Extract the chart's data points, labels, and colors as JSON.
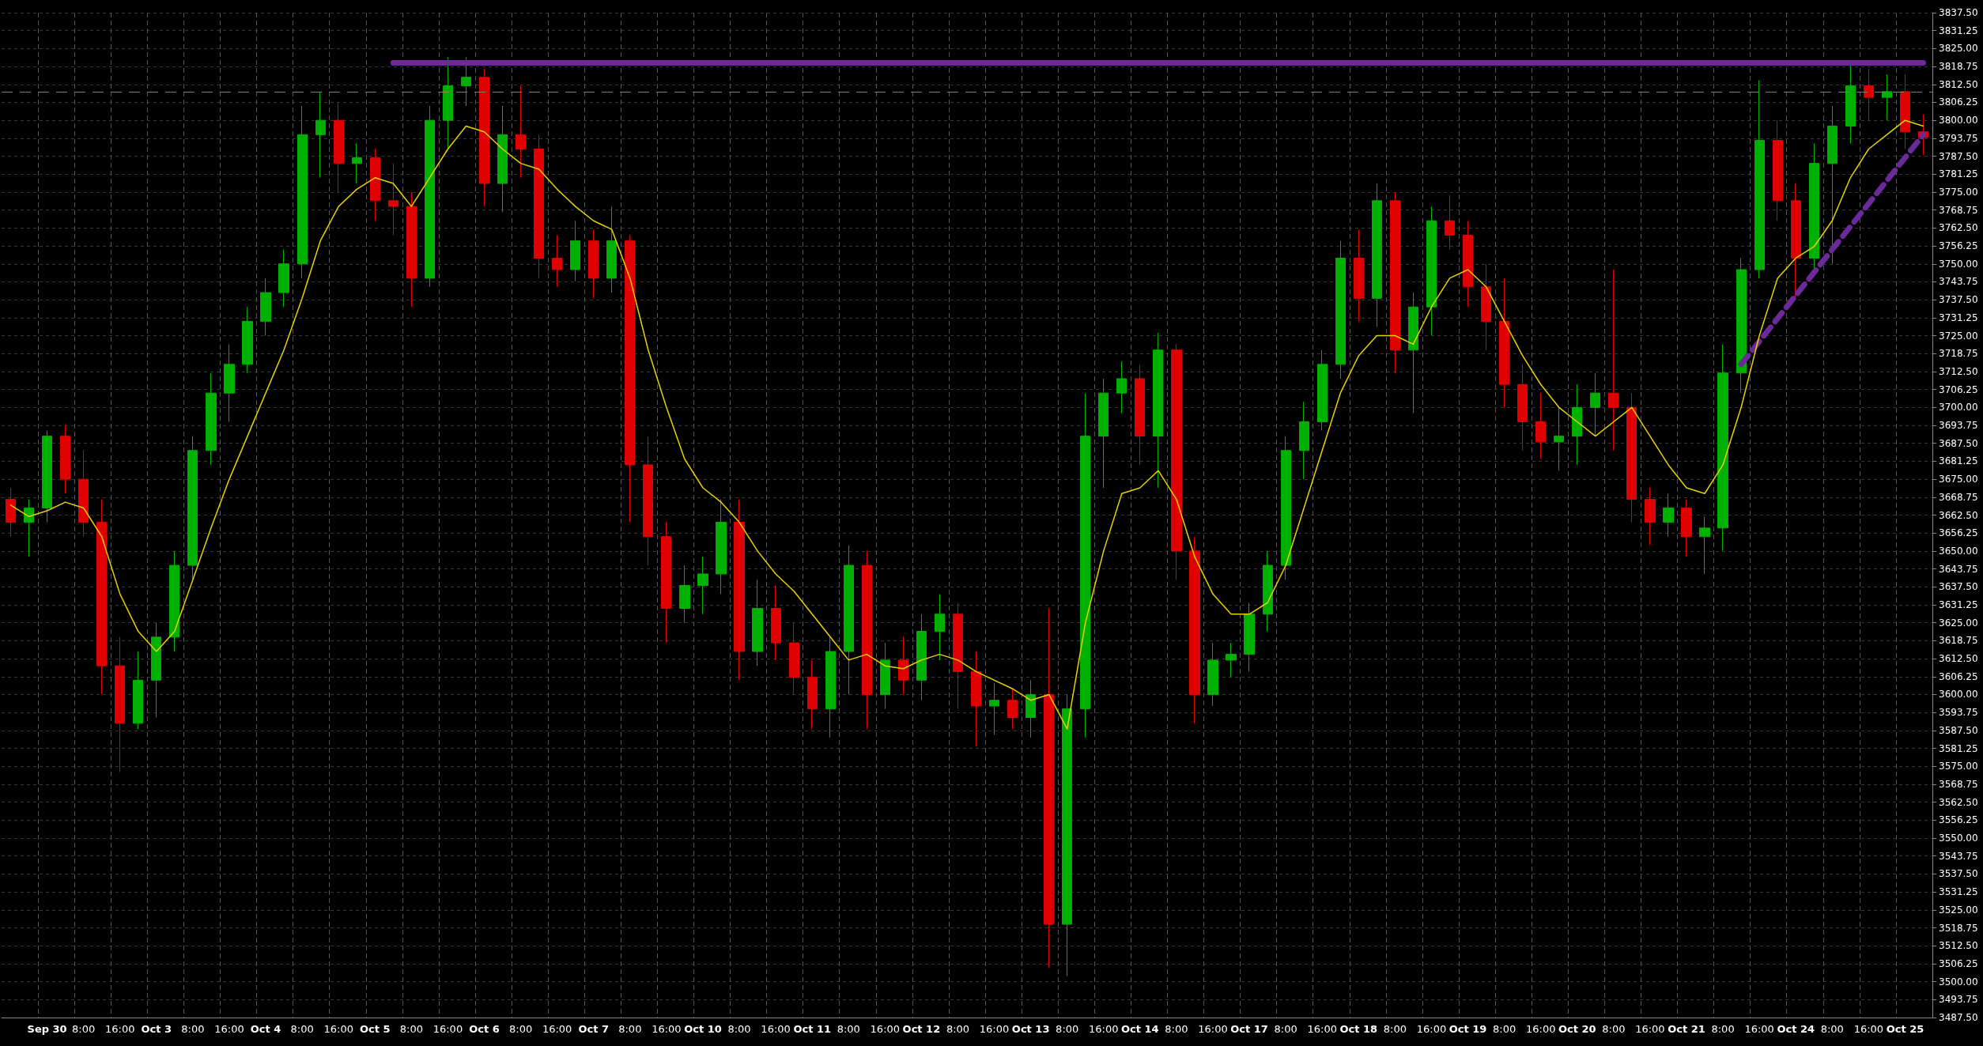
{
  "chart_data": {
    "type": "candlestick",
    "categories": [
      null,
      null,
      "Sep 30",
      null,
      "8:00",
      null,
      "16:00",
      null,
      "Oct 3",
      null,
      "8:00",
      null,
      "16:00",
      null,
      "Oct 4",
      null,
      "8:00",
      null,
      "16:00",
      null,
      "Oct 5",
      null,
      "8:00",
      null,
      "16:00",
      null,
      "Oct 6",
      null,
      "8:00",
      null,
      "16:00",
      null,
      "Oct 7",
      null,
      "8:00",
      null,
      "16:00",
      null,
      "Oct 10",
      null,
      "8:00",
      null,
      "16:00",
      null,
      "Oct 11",
      null,
      "8:00",
      null,
      "16:00",
      null,
      "Oct 12",
      null,
      "8:00",
      null,
      "16:00",
      null,
      "Oct 13",
      null,
      "8:00",
      null,
      "16:00",
      null,
      "Oct 14",
      null,
      "8:00",
      null,
      "16:00",
      null,
      "Oct 17",
      null,
      "8:00",
      null,
      "16:00",
      null,
      "Oct 18",
      null,
      "8:00",
      null,
      "16:00",
      null,
      "Oct 19",
      null,
      "8:00",
      null,
      "16:00",
      null,
      "Oct 20",
      null,
      "8:00",
      null,
      "16:00",
      null,
      "Oct 21",
      null,
      "8:00",
      null,
      "16:00",
      null,
      "Oct 24",
      null,
      "8:00",
      null,
      "16:00",
      null,
      "Oct 25",
      null
    ],
    "ohlc": [
      [
        3668,
        3672,
        3655,
        3660
      ],
      [
        3660,
        3668,
        3648,
        3665
      ],
      [
        3665,
        3692,
        3660,
        3690
      ],
      [
        3690,
        3694,
        3670,
        3675
      ],
      [
        3675,
        3685,
        3655,
        3660
      ],
      [
        3660,
        3668,
        3600,
        3610
      ],
      [
        3610,
        3620,
        3573,
        3590
      ],
      [
        3590,
        3615,
        3588,
        3605
      ],
      [
        3605,
        3625,
        3592,
        3620
      ],
      [
        3620,
        3650,
        3615,
        3645
      ],
      [
        3645,
        3690,
        3640,
        3685
      ],
      [
        3685,
        3712,
        3680,
        3705
      ],
      [
        3705,
        3722,
        3695,
        3715
      ],
      [
        3715,
        3735,
        3712,
        3730
      ],
      [
        3730,
        3745,
        3725,
        3740
      ],
      [
        3740,
        3755,
        3735,
        3750
      ],
      [
        3750,
        3805,
        3745,
        3795
      ],
      [
        3795,
        3810,
        3780,
        3800
      ],
      [
        3800,
        3806,
        3775,
        3785
      ],
      [
        3785,
        3792,
        3778,
        3787
      ],
      [
        3787,
        3790,
        3765,
        3772
      ],
      [
        3772,
        3785,
        3760,
        3770
      ],
      [
        3770,
        3775,
        3735,
        3745
      ],
      [
        3745,
        3805,
        3742,
        3800
      ],
      [
        3800,
        3822,
        3790,
        3812
      ],
      [
        3812,
        3822,
        3805,
        3815
      ],
      [
        3815,
        3818,
        3770,
        3778
      ],
      [
        3778,
        3805,
        3768,
        3795
      ],
      [
        3795,
        3812,
        3780,
        3790
      ],
      [
        3790,
        3795,
        3745,
        3752
      ],
      [
        3752,
        3760,
        3742,
        3748
      ],
      [
        3748,
        3765,
        3744,
        3758
      ],
      [
        3758,
        3762,
        3738,
        3745
      ],
      [
        3745,
        3770,
        3740,
        3758
      ],
      [
        3758,
        3760,
        3660,
        3680
      ],
      [
        3680,
        3690,
        3645,
        3655
      ],
      [
        3655,
        3660,
        3618,
        3630
      ],
      [
        3630,
        3645,
        3625,
        3638
      ],
      [
        3638,
        3648,
        3628,
        3642
      ],
      [
        3642,
        3668,
        3635,
        3660
      ],
      [
        3660,
        3668,
        3605,
        3615
      ],
      [
        3615,
        3640,
        3610,
        3630
      ],
      [
        3630,
        3638,
        3612,
        3618
      ],
      [
        3618,
        3625,
        3600,
        3606
      ],
      [
        3606,
        3612,
        3588,
        3595
      ],
      [
        3595,
        3620,
        3585,
        3615
      ],
      [
        3615,
        3652,
        3600,
        3645
      ],
      [
        3645,
        3650,
        3588,
        3600
      ],
      [
        3600,
        3618,
        3595,
        3612
      ],
      [
        3612,
        3620,
        3600,
        3605
      ],
      [
        3605,
        3628,
        3598,
        3622
      ],
      [
        3622,
        3635,
        3612,
        3628
      ],
      [
        3628,
        3632,
        3595,
        3608
      ],
      [
        3608,
        3615,
        3582,
        3596
      ],
      [
        3596,
        3604,
        3586,
        3598
      ],
      [
        3598,
        3602,
        3588,
        3592
      ],
      [
        3592,
        3605,
        3585,
        3600
      ],
      [
        3600,
        3630,
        3505,
        3520
      ],
      [
        3520,
        3600,
        3502,
        3595
      ],
      [
        3595,
        3705,
        3585,
        3690
      ],
      [
        3690,
        3710,
        3672,
        3705
      ],
      [
        3705,
        3716,
        3698,
        3710
      ],
      [
        3710,
        3715,
        3680,
        3690
      ],
      [
        3690,
        3726,
        3672,
        3720
      ],
      [
        3720,
        3722,
        3640,
        3650
      ],
      [
        3650,
        3655,
        3590,
        3600
      ],
      [
        3600,
        3618,
        3596,
        3612
      ],
      [
        3612,
        3618,
        3606,
        3614
      ],
      [
        3614,
        3632,
        3608,
        3628
      ],
      [
        3628,
        3650,
        3622,
        3645
      ],
      [
        3645,
        3690,
        3640,
        3685
      ],
      [
        3685,
        3702,
        3675,
        3695
      ],
      [
        3695,
        3720,
        3692,
        3715
      ],
      [
        3715,
        3758,
        3710,
        3752
      ],
      [
        3752,
        3762,
        3730,
        3738
      ],
      [
        3738,
        3778,
        3728,
        3772
      ],
      [
        3772,
        3775,
        3712,
        3720
      ],
      [
        3720,
        3740,
        3698,
        3735
      ],
      [
        3735,
        3770,
        3725,
        3765
      ],
      [
        3765,
        3774,
        3755,
        3760
      ],
      [
        3760,
        3765,
        3735,
        3742
      ],
      [
        3742,
        3750,
        3720,
        3730
      ],
      [
        3730,
        3745,
        3700,
        3708
      ],
      [
        3708,
        3715,
        3685,
        3695
      ],
      [
        3695,
        3705,
        3682,
        3688
      ],
      [
        3688,
        3700,
        3678,
        3690
      ],
      [
        3690,
        3708,
        3680,
        3700
      ],
      [
        3700,
        3712,
        3690,
        3705
      ],
      [
        3705,
        3748,
        3685,
        3700
      ],
      [
        3700,
        3705,
        3660,
        3668
      ],
      [
        3668,
        3672,
        3652,
        3660
      ],
      [
        3660,
        3670,
        3655,
        3665
      ],
      [
        3665,
        3668,
        3648,
        3655
      ],
      [
        3655,
        3662,
        3642,
        3658
      ],
      [
        3658,
        3722,
        3650,
        3712
      ],
      [
        3712,
        3752,
        3705,
        3748
      ],
      [
        3748,
        3814,
        3745,
        3793
      ],
      [
        3793,
        3800,
        3765,
        3772
      ],
      [
        3772,
        3778,
        3738,
        3752
      ],
      [
        3752,
        3792,
        3748,
        3785
      ],
      [
        3785,
        3805,
        3750,
        3798
      ],
      [
        3798,
        3820,
        3792,
        3812
      ],
      [
        3812,
        3818,
        3800,
        3808
      ],
      [
        3808,
        3816,
        3800,
        3810
      ],
      [
        3810,
        3816,
        3790,
        3796
      ],
      [
        3796,
        3802,
        3788,
        3794
      ]
    ],
    "series": [
      {
        "type": "line",
        "color": "#e6d200",
        "values": [
          3666,
          3662,
          3664,
          3667,
          3665,
          3655,
          3635,
          3622,
          3615,
          3622,
          3640,
          3658,
          3675,
          3690,
          3705,
          3720,
          3738,
          3758,
          3770,
          3776,
          3780,
          3778,
          3770,
          3780,
          3790,
          3798,
          3796,
          3790,
          3785,
          3783,
          3776,
          3770,
          3765,
          3762,
          3745,
          3720,
          3700,
          3682,
          3672,
          3667,
          3660,
          3650,
          3642,
          3636,
          3628,
          3620,
          3612,
          3614,
          3610,
          3609,
          3612,
          3614,
          3612,
          3608,
          3605,
          3602,
          3598,
          3600,
          3588,
          3625,
          3650,
          3670,
          3672,
          3678,
          3668,
          3648,
          3635,
          3628,
          3628,
          3632,
          3645,
          3665,
          3685,
          3705,
          3718,
          3725,
          3725,
          3722,
          3735,
          3745,
          3748,
          3742,
          3730,
          3718,
          3708,
          3700,
          3695,
          3690,
          3695,
          3700,
          3690,
          3680,
          3672,
          3670,
          3680,
          3700,
          3725,
          3745,
          3752,
          3756,
          3765,
          3780,
          3790,
          3795,
          3800,
          3798
        ]
      },
      {
        "type": "line",
        "color": "#6a2a9a",
        "line_style": "solid",
        "values": [
          null,
          null,
          null,
          null,
          null,
          null,
          null,
          null,
          null,
          null,
          null,
          null,
          null,
          null,
          null,
          null,
          null,
          null,
          null,
          null,
          null,
          3820,
          3820,
          3820,
          3820,
          3820,
          3820,
          3820,
          3820,
          3820,
          3820,
          3820,
          3820,
          3820,
          3820,
          3820,
          3820,
          3820,
          3820,
          3820,
          3820,
          3820,
          3820,
          3820,
          3820,
          3820,
          3820,
          3820,
          3820,
          3820,
          3820,
          3820,
          3820,
          3820,
          3820,
          3820,
          3820,
          3820,
          3820,
          3820,
          3820,
          3820,
          3820,
          3820,
          3820,
          3820,
          3820,
          3820,
          3820,
          3820,
          3820,
          3820,
          3820,
          3820,
          3820,
          3820,
          3820,
          3820,
          3820,
          3820,
          3820,
          3820,
          3820,
          3820,
          3820,
          3820,
          3820,
          3820,
          3820,
          3820,
          3820,
          3820,
          3820,
          3820,
          3820,
          3820,
          3820,
          3820,
          3820,
          3820,
          3820,
          3820,
          3820,
          3820,
          3820,
          3820
        ]
      },
      {
        "type": "line",
        "color": "#6a2a9a",
        "line_style": "dashed",
        "values": [
          null,
          null,
          null,
          null,
          null,
          null,
          null,
          null,
          null,
          null,
          null,
          null,
          null,
          null,
          null,
          null,
          null,
          null,
          null,
          null,
          null,
          null,
          null,
          null,
          null,
          null,
          null,
          null,
          null,
          null,
          null,
          null,
          null,
          null,
          null,
          null,
          null,
          null,
          null,
          null,
          null,
          null,
          null,
          null,
          null,
          null,
          null,
          null,
          null,
          null,
          null,
          null,
          null,
          null,
          null,
          null,
          null,
          null,
          null,
          null,
          null,
          null,
          null,
          null,
          null,
          null,
          null,
          null,
          null,
          null,
          null,
          null,
          null,
          null,
          null,
          null,
          null,
          null,
          null,
          null,
          null,
          null,
          null,
          null,
          null,
          null,
          null,
          null,
          null,
          null,
          null,
          null,
          null,
          null,
          null,
          3715,
          null,
          null,
          null,
          null,
          null,
          null,
          null,
          null,
          null,
          3795
        ]
      }
    ],
    "ref_lines": [
      {
        "axis": "y",
        "value": 3810,
        "color": "#7f7f7f",
        "line_style": "dashed"
      }
    ],
    "ylim": [
      3487.5,
      3837.5
    ],
    "yticks": [
      {
        "value": 3487.5,
        "label": "3487.50"
      },
      {
        "value": 3493.75,
        "label": "3493.75"
      },
      {
        "value": 3500,
        "label": "3500.00"
      },
      {
        "value": 3506.25,
        "label": "3506.25"
      },
      {
        "value": 3512.5,
        "label": "3512.50"
      },
      {
        "value": 3518.75,
        "label": "3518.75"
      },
      {
        "value": 3525,
        "label": "3525.00"
      },
      {
        "value": 3531.25,
        "label": "3531.25"
      },
      {
        "value": 3537.5,
        "label": "3537.50"
      },
      {
        "value": 3543.75,
        "label": "3543.75"
      },
      {
        "value": 3550,
        "label": "3550.00"
      },
      {
        "value": 3556.25,
        "label": "3556.25"
      },
      {
        "value": 3562.5,
        "label": "3562.50"
      },
      {
        "value": 3568.75,
        "label": "3568.75"
      },
      {
        "value": 3575,
        "label": "3575.00"
      },
      {
        "value": 3581.25,
        "label": "3581.25"
      },
      {
        "value": 3587.5,
        "label": "3587.50"
      },
      {
        "value": 3593.75,
        "label": "3593.75"
      },
      {
        "value": 3600,
        "label": "3600.00"
      },
      {
        "value": 3606.25,
        "label": "3606.25"
      },
      {
        "value": 3612.5,
        "label": "3612.50"
      },
      {
        "value": 3618.75,
        "label": "3618.75"
      },
      {
        "value": 3625,
        "label": "3625.00"
      },
      {
        "value": 3631.25,
        "label": "3631.25"
      },
      {
        "value": 3637.5,
        "label": "3637.50"
      },
      {
        "value": 3643.75,
        "label": "3643.75"
      },
      {
        "value": 3650,
        "label": "3650.00"
      },
      {
        "value": 3656.25,
        "label": "3656.25"
      },
      {
        "value": 3662.5,
        "label": "3662.50"
      },
      {
        "value": 3668.75,
        "label": "3668.75"
      },
      {
        "value": 3675,
        "label": "3675.00"
      },
      {
        "value": 3681.25,
        "label": "3681.25"
      },
      {
        "value": 3687.5,
        "label": "3687.50"
      },
      {
        "value": 3693.75,
        "label": "3693.75"
      },
      {
        "value": 3700,
        "label": "3700.00"
      },
      {
        "value": 3706.25,
        "label": "3706.25"
      },
      {
        "value": 3712.5,
        "label": "3712.50"
      },
      {
        "value": 3718.75,
        "label": "3718.75"
      },
      {
        "value": 3725,
        "label": "3725.00"
      },
      {
        "value": 3731.25,
        "label": "3731.25"
      },
      {
        "value": 3737.5,
        "label": "3737.50"
      },
      {
        "value": 3743.75,
        "label": "3743.75"
      },
      {
        "value": 3750,
        "label": "3750.00"
      },
      {
        "value": 3756.25,
        "label": "3756.25"
      },
      {
        "value": 3762.5,
        "label": "3762.50"
      },
      {
        "value": 3768.75,
        "label": "3768.75"
      },
      {
        "value": 3775,
        "label": "3775.00"
      },
      {
        "value": 3781.25,
        "label": "3781.25"
      },
      {
        "value": 3787.5,
        "label": "3787.50"
      },
      {
        "value": 3793.75,
        "label": "3793.75"
      },
      {
        "value": 3800,
        "label": "3800.00"
      },
      {
        "value": 3806.25,
        "label": "3806.25"
      },
      {
        "value": 3812.5,
        "label": "3812.50"
      },
      {
        "value": 3818.75,
        "label": "3818.75"
      },
      {
        "value": 3825,
        "label": "3825.00"
      },
      {
        "value": 3831.25,
        "label": "3831.25"
      },
      {
        "value": 3837.5,
        "label": "3837.50"
      }
    ],
    "grid": true
  }
}
